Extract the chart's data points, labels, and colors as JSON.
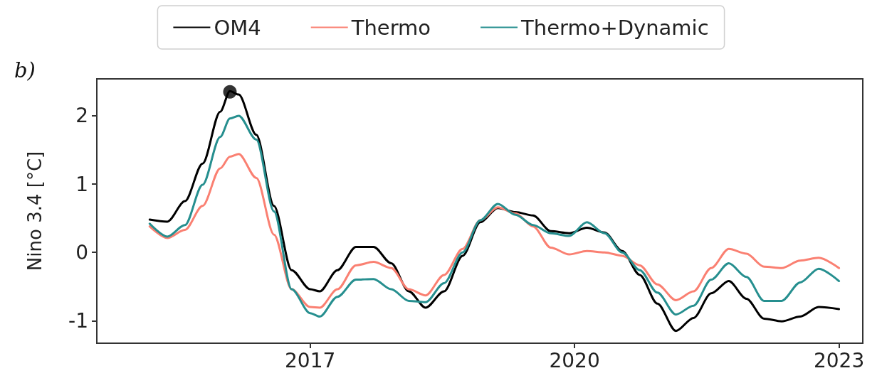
{
  "chart_data": {
    "type": "line",
    "ylabel": "Nino 3.4 [°C]",
    "annotations": [
      "b)"
    ],
    "x": [
      2015.18,
      2015.38,
      2015.58,
      2015.78,
      2015.98,
      2016.09,
      2016.19,
      2016.39,
      2016.59,
      2016.79,
      2017.0,
      2017.11,
      2017.31,
      2017.52,
      2017.72,
      2017.92,
      2018.12,
      2018.31,
      2018.52,
      2018.73,
      2018.93,
      2019.13,
      2019.33,
      2019.53,
      2019.73,
      2019.94,
      2020.14,
      2020.34,
      2020.54,
      2020.74,
      2020.94,
      2021.15,
      2021.35,
      2021.55,
      2021.75,
      2021.95,
      2022.15,
      2022.35,
      2022.56,
      2022.77,
      2023.0
    ],
    "series": [
      {
        "name": "OM4",
        "color": "#000000",
        "values": [
          0.48,
          0.45,
          0.75,
          1.3,
          2.06,
          2.36,
          2.31,
          1.72,
          0.68,
          -0.26,
          -0.54,
          -0.57,
          -0.26,
          0.08,
          0.08,
          -0.16,
          -0.57,
          -0.81,
          -0.57,
          -0.05,
          0.44,
          0.65,
          0.59,
          0.54,
          0.31,
          0.28,
          0.36,
          0.29,
          0.02,
          -0.33,
          -0.75,
          -1.15,
          -0.96,
          -0.6,
          -0.42,
          -0.68,
          -0.97,
          -1.01,
          -0.94,
          -0.8,
          -0.83
        ]
      },
      {
        "name": "Thermo",
        "color": "#fa8072",
        "values": [
          0.38,
          0.21,
          0.33,
          0.68,
          1.23,
          1.4,
          1.44,
          1.09,
          0.26,
          -0.54,
          -0.8,
          -0.81,
          -0.54,
          -0.19,
          -0.14,
          -0.23,
          -0.54,
          -0.63,
          -0.33,
          0.05,
          0.47,
          0.66,
          0.57,
          0.38,
          0.07,
          -0.03,
          0.02,
          0.0,
          -0.05,
          -0.19,
          -0.47,
          -0.7,
          -0.57,
          -0.23,
          0.05,
          -0.02,
          -0.21,
          -0.23,
          -0.12,
          -0.08,
          -0.23
        ]
      },
      {
        "name": "Thermo+Dynamic",
        "color": "#268f8f",
        "values": [
          0.42,
          0.23,
          0.4,
          0.99,
          1.69,
          1.96,
          2.0,
          1.65,
          0.6,
          -0.54,
          -0.89,
          -0.94,
          -0.65,
          -0.4,
          -0.39,
          -0.54,
          -0.71,
          -0.73,
          -0.45,
          0.0,
          0.47,
          0.71,
          0.55,
          0.4,
          0.28,
          0.24,
          0.44,
          0.28,
          0.0,
          -0.26,
          -0.59,
          -0.91,
          -0.78,
          -0.4,
          -0.16,
          -0.36,
          -0.71,
          -0.71,
          -0.44,
          -0.24,
          -0.42
        ]
      },
      {
        "type": "scatter",
        "marker": "circle",
        "color": "#000000",
        "x": [
          2016.09
        ],
        "values": [
          2.35
        ]
      }
    ],
    "marker": "none",
    "line_style": "solid",
    "legend": "top",
    "grid": false,
    "xlim": [
      2014.58,
      2023.27
    ],
    "xticks": [
      2017,
      2020,
      2023
    ],
    "ylim": [
      -1.33,
      2.54
    ],
    "yticks": [
      -1,
      0,
      1,
      2
    ]
  }
}
